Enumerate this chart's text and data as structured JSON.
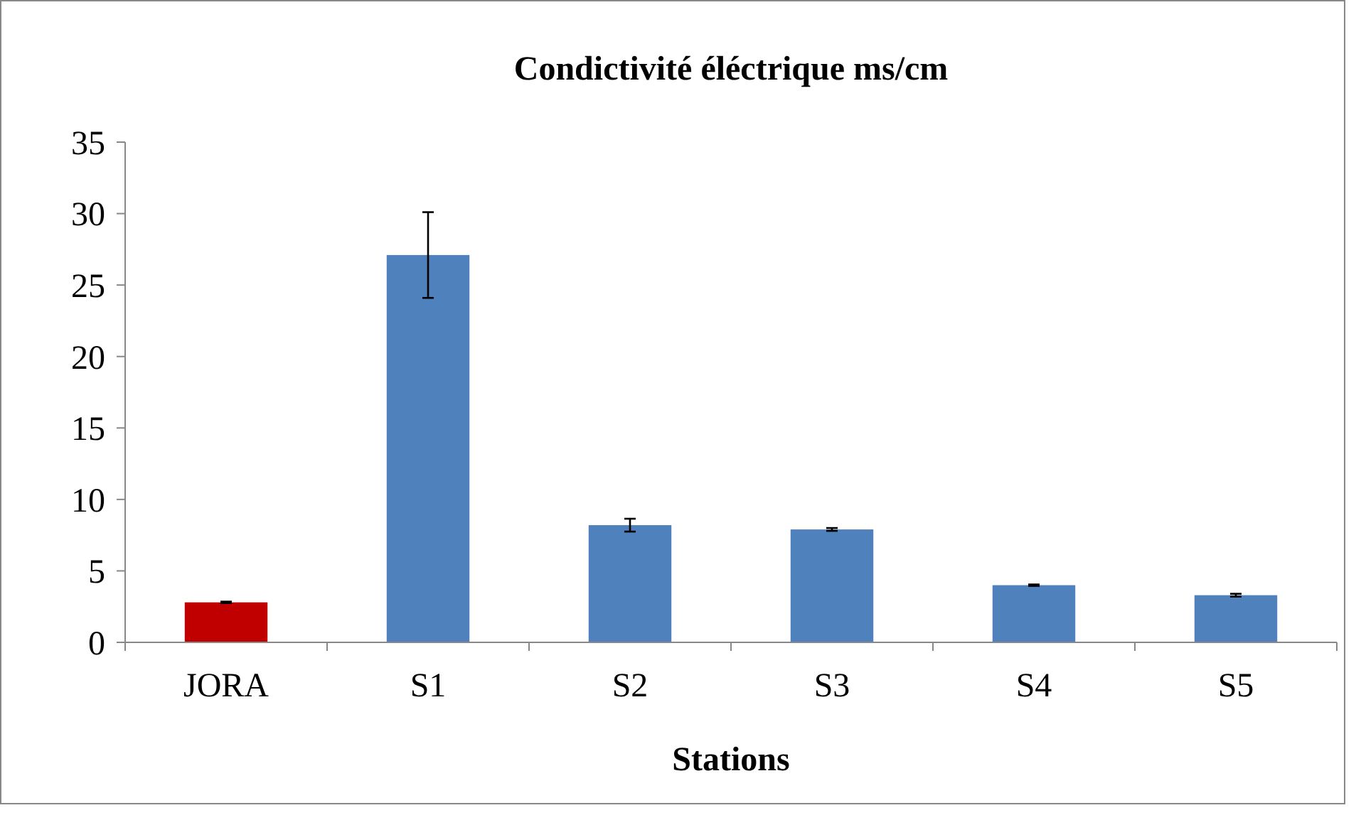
{
  "chart_data": {
    "type": "bar",
    "title": "Condictivité éléctrique ms/cm",
    "xlabel": "Stations",
    "categories": [
      "JORA",
      "S1",
      "S2",
      "S3",
      "S4",
      "S5"
    ],
    "values": [
      2.8,
      27.1,
      8.2,
      7.9,
      4.0,
      3.3
    ],
    "colors": [
      "#c00000",
      "#4f81bd",
      "#4f81bd",
      "#4f81bd",
      "#4f81bd",
      "#4f81bd"
    ],
    "errors": [
      0.05,
      3,
      0.45,
      0.1,
      0.05,
      0.1
    ],
    "ylim": [
      0,
      35
    ],
    "yticks": [
      0,
      5,
      10,
      15,
      20,
      25,
      30,
      35
    ],
    "grid": false
  }
}
